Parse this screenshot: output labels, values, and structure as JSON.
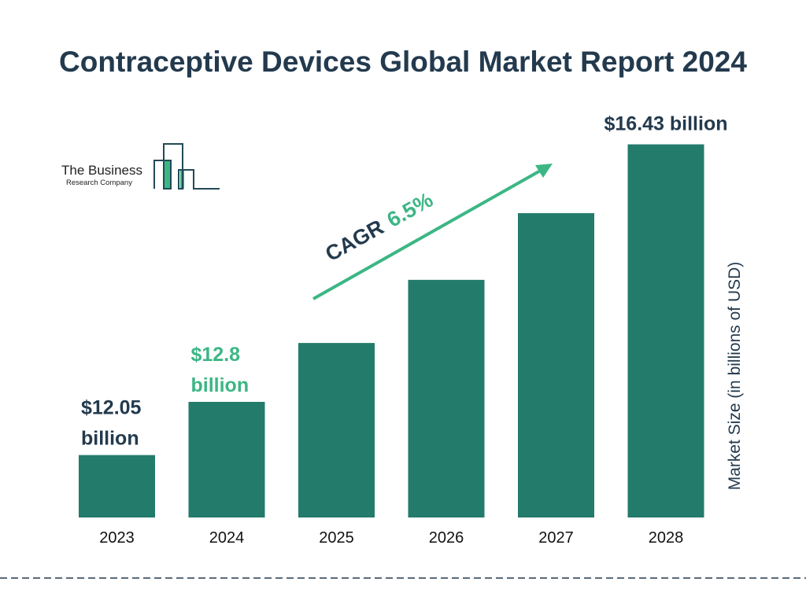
{
  "chart_data": {
    "type": "bar",
    "title": "Contraceptive Devices Global Market Report 2024",
    "categories": [
      "2023",
      "2024",
      "2025",
      "2026",
      "2027",
      "2028"
    ],
    "values": [
      12.05,
      12.8,
      13.63,
      14.52,
      15.46,
      16.43
    ],
    "data_labels": [
      [
        "$12.05",
        "billion"
      ],
      [
        "$12.8",
        "billion"
      ],
      null,
      null,
      null,
      [
        "$16.43 billion"
      ]
    ],
    "ylabel": "Market Size (in billions of USD)",
    "xlabel": "",
    "grid": false,
    "annotation": {
      "prefix": "CAGR",
      "value": "6.5%"
    },
    "colors": {
      "bar": "#237b6c",
      "text": "#233a4e",
      "accent": "#3cb685"
    }
  },
  "logo": {
    "line1": "The Business",
    "line2": "Research Company"
  }
}
